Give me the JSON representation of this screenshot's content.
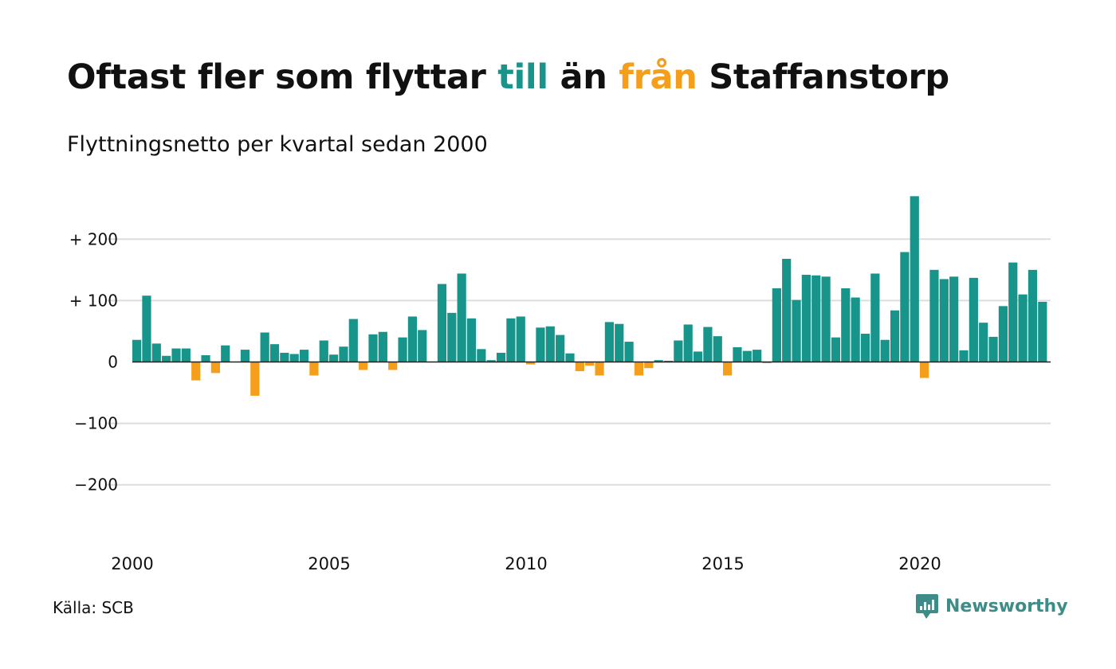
{
  "header": {
    "title_part1": "Oftast fler som flyttar ",
    "title_word_in": "till",
    "title_part2": " än ",
    "title_word_out": "från",
    "title_part3": " Staffanstorp",
    "subtitle": "Flyttningsnetto per kvartal sedan 2000"
  },
  "footer": {
    "source": "Källa: SCB",
    "brand": "Newsworthy"
  },
  "colors": {
    "positive": "#17958a",
    "negative": "#f59e1b",
    "grid": "#dddddd",
    "baseline": "#222222",
    "brand": "#3d8c88"
  },
  "chart_data": {
    "type": "bar",
    "title": "Oftast fler som flyttar till än från Staffanstorp",
    "subtitle": "Flyttningsnetto per kvartal sedan 2000",
    "start": "2000Q1",
    "xticks": [
      "2000",
      "2005",
      "2010",
      "2015",
      "2020"
    ],
    "yticks": [
      {
        "value": 200,
        "label": "+ 200"
      },
      {
        "value": 100,
        "label": "+ 100"
      },
      {
        "value": 0,
        "label": "0"
      },
      {
        "value": -100,
        "label": "−100"
      },
      {
        "value": -200,
        "label": "−200"
      }
    ],
    "ylim": [
      -270,
      275
    ],
    "grid": true,
    "values": [
      36,
      108,
      30,
      10,
      22,
      22,
      -30,
      11,
      -18,
      27,
      0,
      20,
      -55,
      48,
      29,
      15,
      13,
      20,
      -22,
      35,
      12,
      25,
      70,
      -13,
      45,
      49,
      -13,
      40,
      74,
      52,
      0,
      127,
      80,
      144,
      71,
      21,
      3,
      15,
      71,
      74,
      -4,
      56,
      58,
      44,
      14,
      -15,
      -6,
      -22,
      65,
      62,
      33,
      -22,
      -10,
      3,
      2,
      35,
      61,
      17,
      57,
      42,
      -22,
      24,
      18,
      20,
      -2,
      120,
      168,
      101,
      142,
      141,
      139,
      40,
      120,
      105,
      46,
      144,
      36,
      84,
      179,
      270,
      -26,
      150,
      135,
      139,
      19,
      137,
      64,
      41,
      91,
      162,
      110,
      150,
      98
    ]
  }
}
